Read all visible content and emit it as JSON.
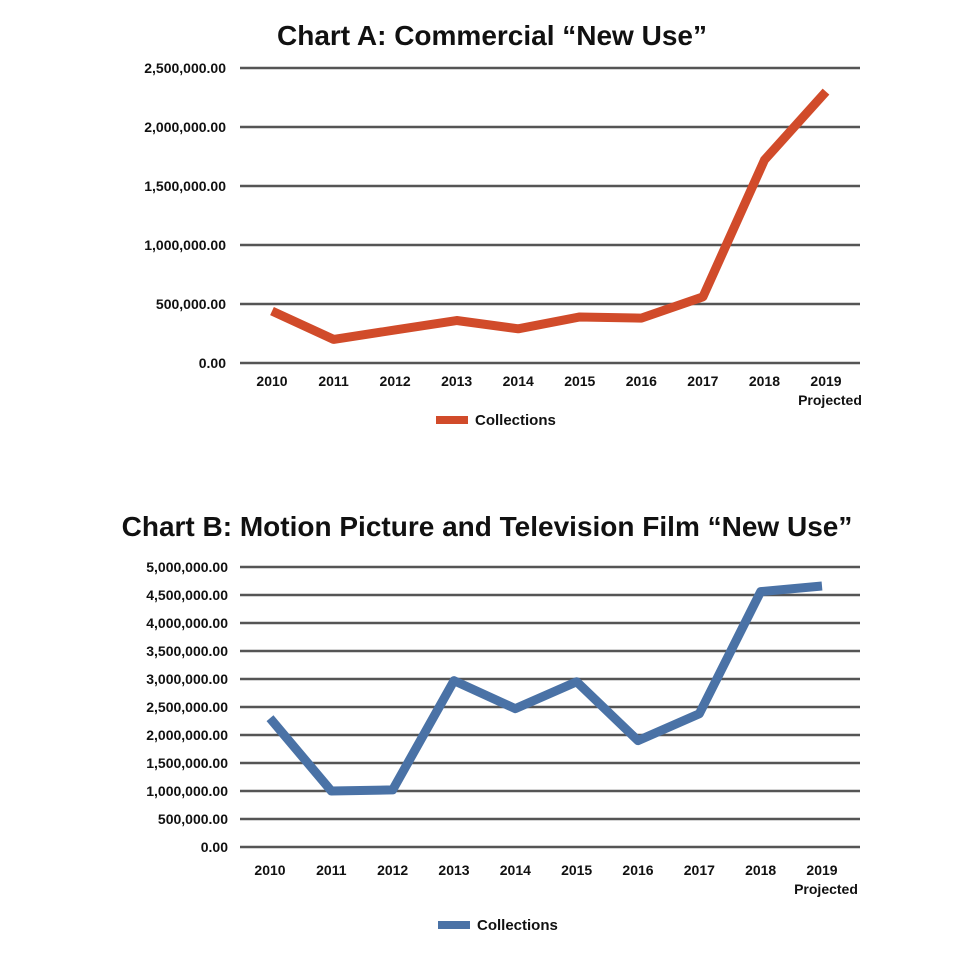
{
  "chart_data": [
    {
      "type": "line",
      "title": "Chart A: Commercial “New Use”",
      "categories": [
        "2010",
        "2011",
        "2012",
        "2013",
        "2014",
        "2015",
        "2016",
        "2017",
        "2018",
        "2019"
      ],
      "category_sublabels": [
        "",
        "",
        "",
        "",
        "",
        "",
        "",
        "",
        "",
        "Projected"
      ],
      "y_tick_labels": [
        "0.00",
        "500,000.00",
        "1,000,000.00",
        "1,500,000.00",
        "2,000,000.00",
        "2,500,000.00"
      ],
      "ylim": [
        0,
        2500000
      ],
      "grid": true,
      "legend_position": "bottom",
      "series": [
        {
          "name": "Collections",
          "color": "#d14b2a",
          "values": [
            440000,
            200000,
            280000,
            360000,
            290000,
            390000,
            380000,
            560000,
            1720000,
            2300000
          ]
        }
      ]
    },
    {
      "type": "line",
      "title": "Chart B: Motion Picture and Television Film “New Use”",
      "categories": [
        "2010",
        "2011",
        "2012",
        "2013",
        "2014",
        "2015",
        "2016",
        "2017",
        "2018",
        "2019"
      ],
      "category_sublabels": [
        "",
        "",
        "",
        "",
        "",
        "",
        "",
        "",
        "",
        "Projected"
      ],
      "y_tick_labels": [
        "0.00",
        "500,000.00",
        "1,000,000.00",
        "1,500,000.00",
        "2,000,000.00",
        "2,500,000.00",
        "3,000,000.00",
        "3,500,000.00",
        "4,000,000.00",
        "4,500,000.00",
        "5,000,000.00"
      ],
      "ylim": [
        0,
        5000000
      ],
      "grid": true,
      "legend_position": "bottom",
      "series": [
        {
          "name": "Collections",
          "color": "#4a72a6",
          "values": [
            2300000,
            1000000,
            1020000,
            2970000,
            2470000,
            2950000,
            1900000,
            2380000,
            4560000,
            4660000
          ]
        }
      ]
    }
  ]
}
